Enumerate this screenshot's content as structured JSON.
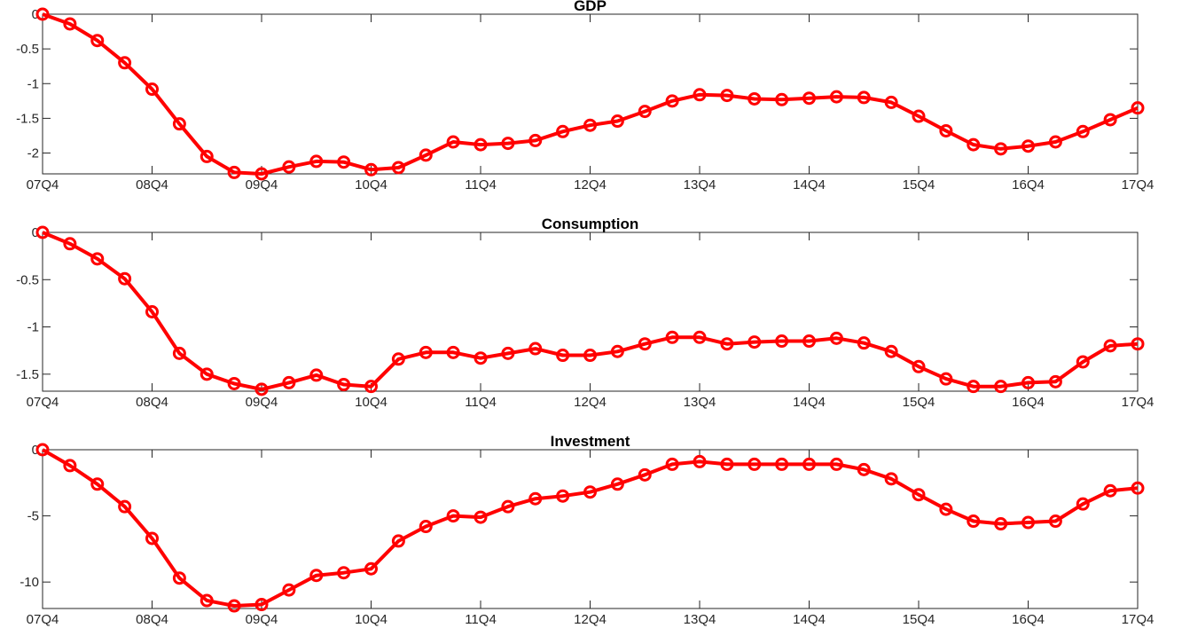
{
  "colors": {
    "series": "#ff0000",
    "axes": "#262626"
  },
  "chart_data": [
    {
      "type": "line",
      "title": "GDP",
      "xlabel": "",
      "ylabel": "",
      "xticks": [
        "07Q4",
        "08Q4",
        "09Q4",
        "10Q4",
        "11Q4",
        "12Q4",
        "13Q4",
        "14Q4",
        "15Q4",
        "16Q4",
        "17Q4"
      ],
      "ylim": [
        -2.3,
        0
      ],
      "yticks": [
        0,
        -0.5,
        -1,
        -1.5,
        -2
      ],
      "ytick_labels": [
        "0",
        "-0.5",
        "-1",
        "-1.5",
        "-2"
      ],
      "grid": false,
      "marker": "circle",
      "values": [
        0,
        -0.14,
        -0.38,
        -0.7,
        -1.08,
        -1.58,
        -2.05,
        -2.28,
        -2.3,
        -2.2,
        -2.12,
        -2.13,
        -2.24,
        -2.21,
        -2.03,
        -1.84,
        -1.88,
        -1.86,
        -1.82,
        -1.69,
        -1.6,
        -1.54,
        -1.4,
        -1.25,
        -1.16,
        -1.17,
        -1.22,
        -1.23,
        -1.21,
        -1.19,
        -1.2,
        -1.27,
        -1.47,
        -1.68,
        -1.88,
        -1.94,
        -1.9,
        -1.84,
        -1.69,
        -1.52,
        -1.35
      ]
    },
    {
      "type": "line",
      "title": "Consumption",
      "xlabel": "",
      "ylabel": "",
      "xticks": [
        "07Q4",
        "08Q4",
        "09Q4",
        "10Q4",
        "11Q4",
        "12Q4",
        "13Q4",
        "14Q4",
        "15Q4",
        "16Q4",
        "17Q4"
      ],
      "ylim": [
        -1.68,
        0
      ],
      "yticks": [
        0,
        -0.5,
        -1,
        -1.5
      ],
      "ytick_labels": [
        "0",
        "-0.5",
        "-1",
        "-1.5"
      ],
      "grid": false,
      "marker": "circle",
      "values": [
        0,
        -0.12,
        -0.28,
        -0.49,
        -0.84,
        -1.28,
        -1.5,
        -1.6,
        -1.66,
        -1.59,
        -1.51,
        -1.61,
        -1.63,
        -1.34,
        -1.27,
        -1.27,
        -1.33,
        -1.28,
        -1.23,
        -1.3,
        -1.3,
        -1.26,
        -1.18,
        -1.11,
        -1.11,
        -1.18,
        -1.16,
        -1.15,
        -1.15,
        -1.12,
        -1.17,
        -1.26,
        -1.42,
        -1.55,
        -1.63,
        -1.63,
        -1.59,
        -1.58,
        -1.37,
        -1.2,
        -1.18
      ]
    },
    {
      "type": "line",
      "title": "Investment",
      "xlabel": "",
      "ylabel": "",
      "xticks": [
        "07Q4",
        "08Q4",
        "09Q4",
        "10Q4",
        "11Q4",
        "12Q4",
        "13Q4",
        "14Q4",
        "15Q4",
        "16Q4",
        "17Q4"
      ],
      "ylim": [
        -12,
        0
      ],
      "yticks": [
        0,
        -5,
        -10
      ],
      "ytick_labels": [
        "0",
        "-5",
        "-10"
      ],
      "grid": false,
      "marker": "circle",
      "values": [
        0,
        -1.2,
        -2.6,
        -4.3,
        -6.7,
        -9.7,
        -11.4,
        -11.8,
        -11.7,
        -10.6,
        -9.5,
        -9.3,
        -9.0,
        -6.9,
        -5.8,
        -5.0,
        -5.1,
        -4.3,
        -3.7,
        -3.5,
        -3.2,
        -2.6,
        -1.9,
        -1.1,
        -0.9,
        -1.1,
        -1.1,
        -1.1,
        -1.1,
        -1.1,
        -1.5,
        -2.2,
        -3.4,
        -4.5,
        -5.4,
        -5.6,
        -5.5,
        -5.4,
        -4.1,
        -3.1,
        -2.9
      ]
    }
  ]
}
